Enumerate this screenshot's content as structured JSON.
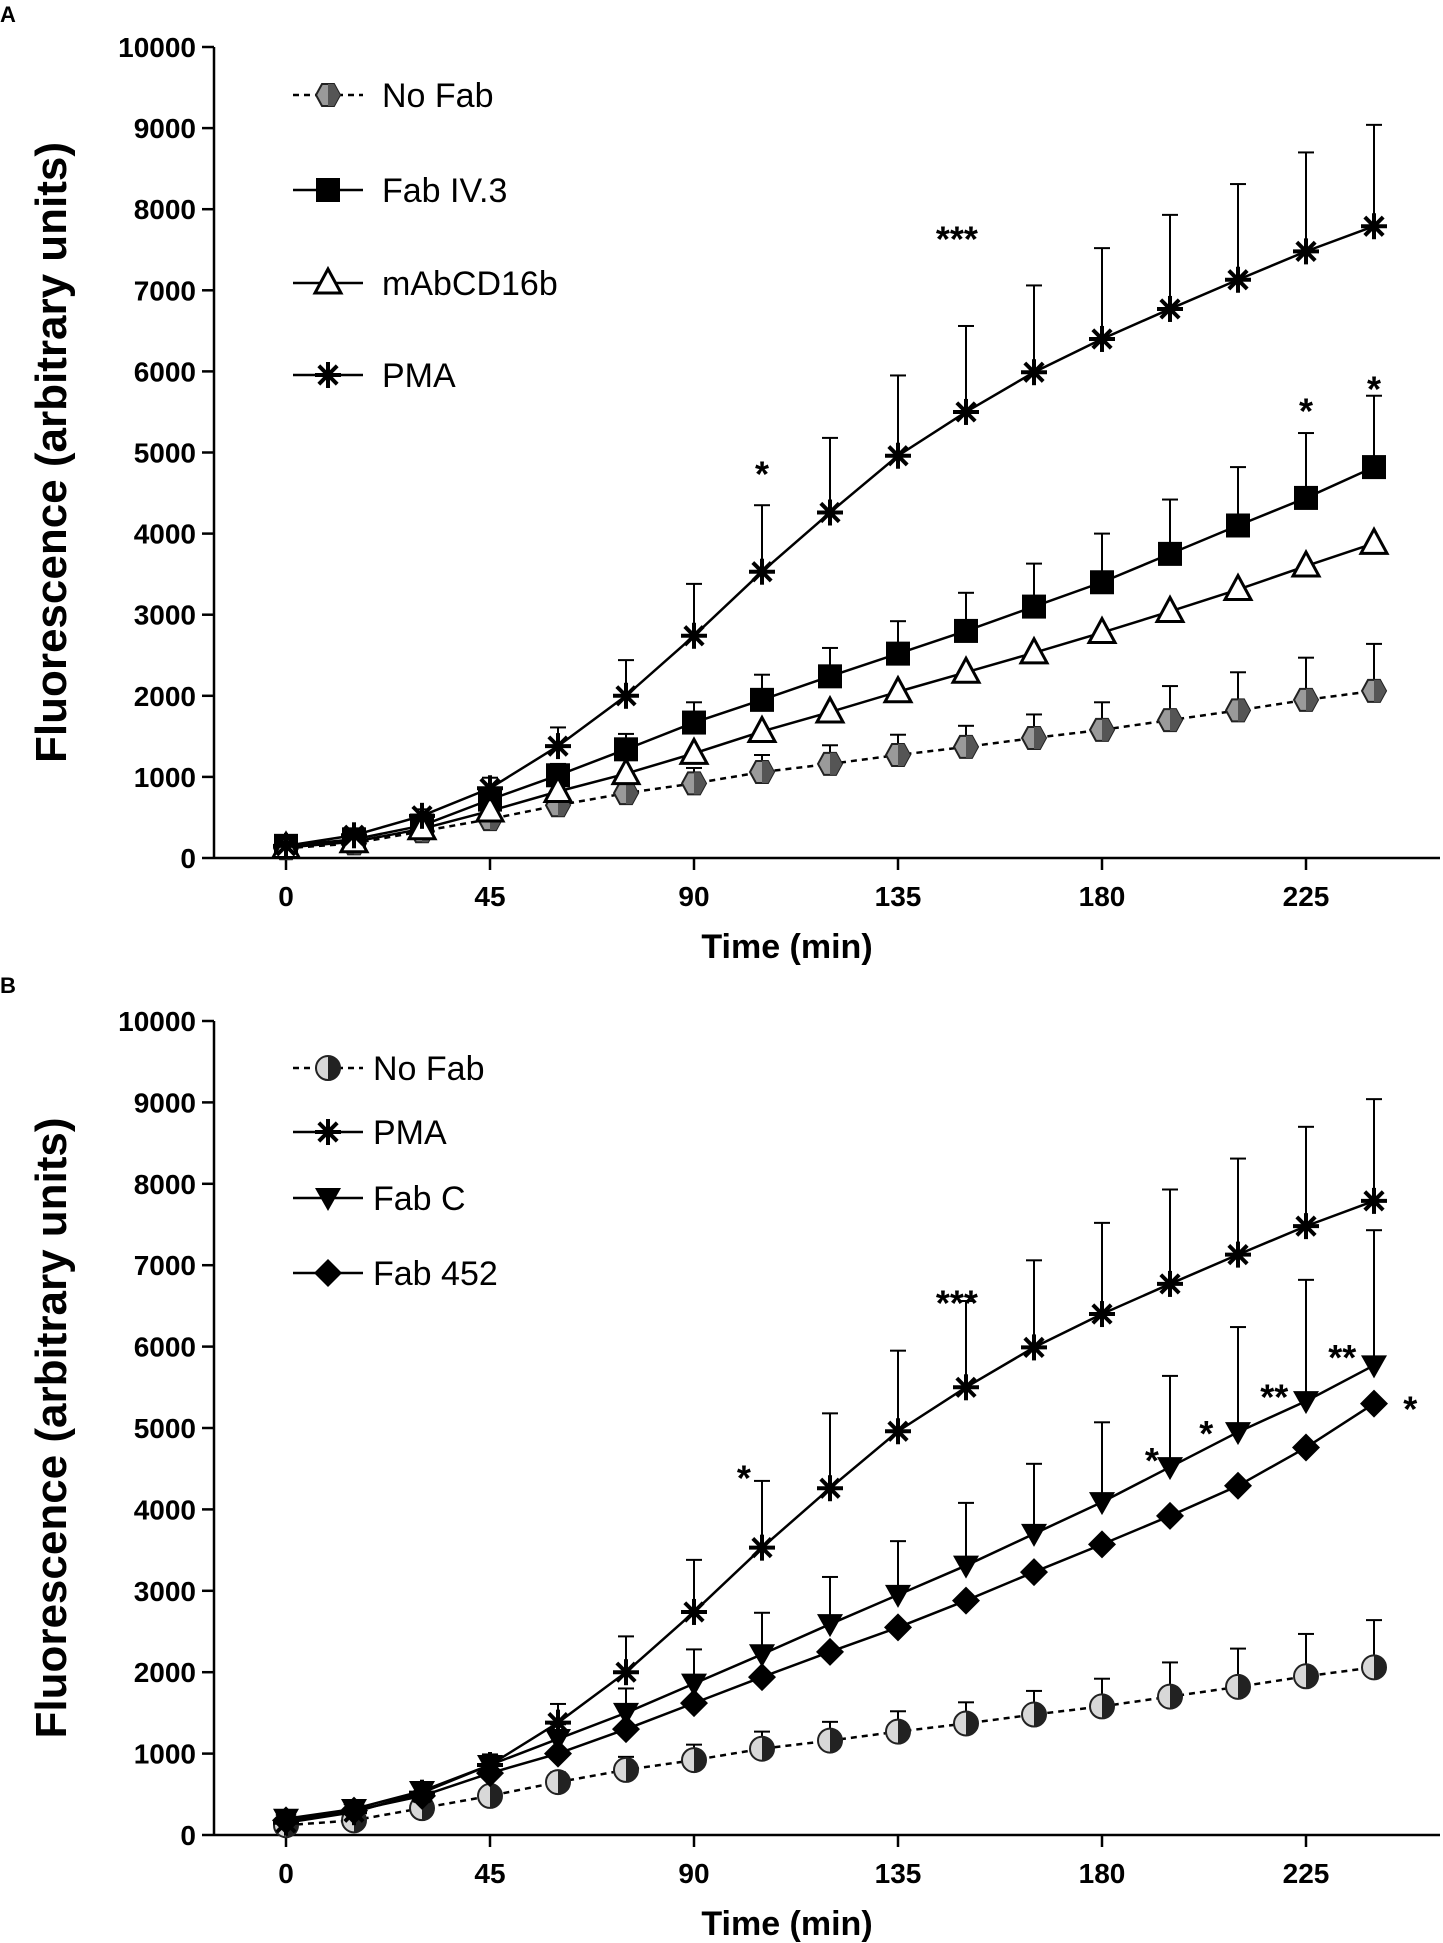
{
  "chart_data": [
    {
      "type": "line",
      "panel": "A",
      "xlabel": "Time (min)",
      "ylabel": "Fluorescence (arbitrary units)",
      "xlim": [
        -15,
        255
      ],
      "ylim": [
        0,
        10000
      ],
      "xticks": [
        0,
        45,
        90,
        135,
        180,
        225
      ],
      "yticks": [
        0,
        1000,
        2000,
        3000,
        4000,
        5000,
        6000,
        7000,
        8000,
        9000,
        10000
      ],
      "legend": "top-left",
      "x": [
        0,
        15,
        30,
        45,
        60,
        75,
        90,
        105,
        120,
        135,
        150,
        165,
        180,
        195,
        210,
        225,
        240
      ],
      "series": [
        {
          "name": "No Fab",
          "marker": "half-circle-grey",
          "dashed": true,
          "values": [
            120,
            180,
            330,
            480,
            650,
            800,
            920,
            1060,
            1160,
            1270,
            1370,
            1480,
            1580,
            1700,
            1820,
            1950,
            2060
          ],
          "errors": [
            20,
            30,
            50,
            80,
            120,
            160,
            190,
            210,
            230,
            250,
            260,
            290,
            340,
            420,
            470,
            520,
            580
          ]
        },
        {
          "name": "Fab IV.3",
          "marker": "square-filled",
          "dashed": false,
          "values": [
            150,
            230,
            400,
            720,
            1020,
            1340,
            1670,
            1950,
            2240,
            2520,
            2800,
            3100,
            3400,
            3750,
            4100,
            4440,
            4820
          ],
          "errors": [
            20,
            30,
            60,
            90,
            140,
            190,
            250,
            310,
            350,
            400,
            470,
            530,
            600,
            670,
            720,
            800,
            880
          ]
        },
        {
          "name": "mAbCD16b",
          "marker": "triangle-open",
          "dashed": false,
          "values": [
            130,
            200,
            360,
            580,
            820,
            1040,
            1290,
            1560,
            1800,
            2050,
            2290,
            2530,
            2780,
            3040,
            3310,
            3600,
            3880
          ]
        },
        {
          "name": "PMA",
          "marker": "asterisk",
          "dashed": false,
          "values": [
            150,
            280,
            520,
            860,
            1380,
            2000,
            2740,
            3530,
            4260,
            4960,
            5500,
            5990,
            6400,
            6770,
            7130,
            7480,
            7790
          ],
          "errors": [
            30,
            50,
            80,
            130,
            230,
            440,
            640,
            820,
            920,
            990,
            1060,
            1070,
            1120,
            1160,
            1180,
            1220,
            1250
          ]
        }
      ],
      "annotations": [
        {
          "text": "*",
          "x": 105,
          "y": 4850
        },
        {
          "text": "***",
          "x": 148,
          "y": 7750
        },
        {
          "text": "*",
          "x": 225,
          "y": 5630
        },
        {
          "text": "*",
          "x": 240,
          "y": 5900
        }
      ]
    },
    {
      "type": "line",
      "panel": "B",
      "xlabel": "Time (min)",
      "ylabel": "Fluorescence (arbitrary units)",
      "xlim": [
        -15,
        255
      ],
      "ylim": [
        0,
        10000
      ],
      "xticks": [
        0,
        45,
        90,
        135,
        180,
        225
      ],
      "yticks": [
        0,
        1000,
        2000,
        3000,
        4000,
        5000,
        6000,
        7000,
        8000,
        9000,
        10000
      ],
      "legend": "top-left",
      "x": [
        0,
        15,
        30,
        45,
        60,
        75,
        90,
        105,
        120,
        135,
        150,
        165,
        180,
        195,
        210,
        225,
        240
      ],
      "series": [
        {
          "name": "No Fab",
          "marker": "half-circle-light",
          "dashed": true,
          "values": [
            120,
            180,
            330,
            480,
            650,
            800,
            920,
            1060,
            1160,
            1270,
            1370,
            1480,
            1580,
            1700,
            1820,
            1950,
            2060
          ],
          "errors": [
            20,
            30,
            50,
            80,
            120,
            160,
            190,
            210,
            230,
            250,
            260,
            290,
            340,
            420,
            470,
            520,
            580
          ]
        },
        {
          "name": "PMA",
          "marker": "asterisk",
          "dashed": false,
          "values": [
            150,
            280,
            520,
            860,
            1380,
            2000,
            2740,
            3530,
            4260,
            4960,
            5500,
            5990,
            6400,
            6770,
            7130,
            7480,
            7790
          ],
          "errors": [
            30,
            50,
            80,
            130,
            230,
            440,
            640,
            820,
            920,
            990,
            1060,
            1070,
            1120,
            1160,
            1180,
            1220,
            1250
          ]
        },
        {
          "name": "Fab C",
          "marker": "triangle-down",
          "dashed": false,
          "values": [
            200,
            320,
            540,
            860,
            1180,
            1500,
            1860,
            2220,
            2590,
            2950,
            3310,
            3700,
            4090,
            4520,
            4950,
            5330,
            5770
          ],
          "errors": [
            30,
            50,
            80,
            110,
            180,
            300,
            420,
            510,
            580,
            660,
            770,
            860,
            980,
            1120,
            1290,
            1490,
            1660
          ]
        },
        {
          "name": "Fab 452",
          "marker": "diamond",
          "dashed": false,
          "values": [
            180,
            300,
            480,
            760,
            1000,
            1300,
            1620,
            1940,
            2250,
            2550,
            2880,
            3230,
            3570,
            3920,
            4290,
            4760,
            5300
          ]
        }
      ],
      "annotations": [
        {
          "text": "*",
          "x": 101,
          "y": 4500
        },
        {
          "text": "***",
          "x": 148,
          "y": 6650
        },
        {
          "text": "*",
          "x": 191,
          "y": 4720
        },
        {
          "text": "*",
          "x": 203,
          "y": 5050
        },
        {
          "text": "**",
          "x": 218,
          "y": 5500
        },
        {
          "text": "**",
          "x": 233,
          "y": 5980
        },
        {
          "text": "*",
          "x": 248,
          "y": 5350
        }
      ]
    }
  ]
}
